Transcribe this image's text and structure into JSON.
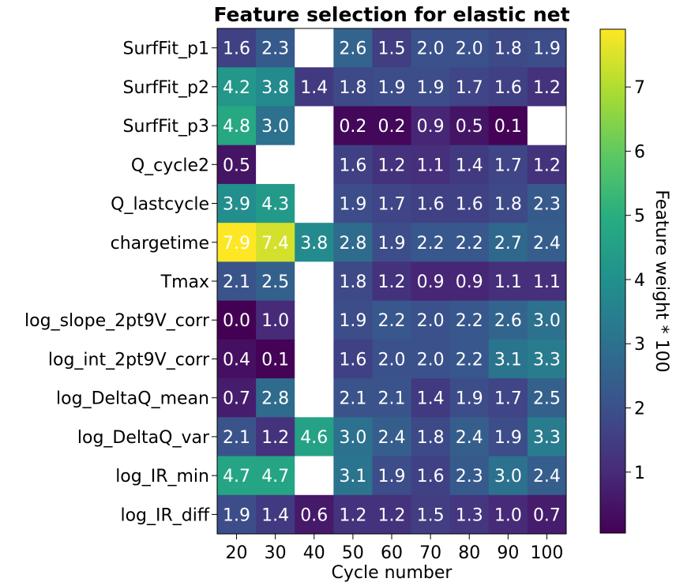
{
  "chart_data": {
    "type": "heatmap",
    "title": "Feature selection for elastic net",
    "xlabel": "Cycle number",
    "colorbar_label": "Feature weight * 100",
    "colormap": "viridis",
    "color_range": [
      0.05,
      7.9
    ],
    "colorbar_ticks": [
      1,
      2,
      3,
      4,
      5,
      6,
      7
    ],
    "x_categories": [
      "20",
      "30",
      "40",
      "50",
      "60",
      "70",
      "80",
      "90",
      "100"
    ],
    "y_categories": [
      "SurfFit_p1",
      "SurfFit_p2",
      "SurfFit_p3",
      "Q_cycle2",
      "Q_lastcycle",
      "chargetime",
      "Tmax",
      "log_slope_2pt9V_corr",
      "log_int_2pt9V_corr",
      "log_DeltaQ_mean",
      "log_DeltaQ_var",
      "log_IR_min",
      "log_IR_diff"
    ],
    "values": [
      [
        1.6,
        2.3,
        null,
        2.6,
        1.5,
        2.0,
        2.0,
        1.8,
        1.9
      ],
      [
        4.2,
        3.8,
        1.4,
        1.8,
        1.9,
        1.9,
        1.7,
        1.6,
        1.2
      ],
      [
        4.8,
        3.0,
        null,
        0.2,
        0.2,
        0.9,
        0.5,
        0.1,
        null
      ],
      [
        0.5,
        null,
        null,
        1.6,
        1.2,
        1.1,
        1.4,
        1.7,
        1.2
      ],
      [
        3.9,
        4.3,
        null,
        1.9,
        1.7,
        1.6,
        1.6,
        1.8,
        2.3
      ],
      [
        7.9,
        7.4,
        3.8,
        2.8,
        1.9,
        2.2,
        2.2,
        2.7,
        2.4
      ],
      [
        2.1,
        2.5,
        null,
        1.8,
        1.2,
        0.9,
        0.9,
        1.1,
        1.1
      ],
      [
        0.0,
        1.0,
        null,
        1.9,
        2.2,
        2.0,
        2.2,
        2.6,
        3.0
      ],
      [
        0.4,
        0.1,
        null,
        1.6,
        2.0,
        2.0,
        2.2,
        3.1,
        3.3
      ],
      [
        0.7,
        2.8,
        null,
        2.1,
        2.1,
        1.4,
        1.9,
        1.7,
        2.5
      ],
      [
        2.1,
        1.2,
        4.6,
        3.0,
        2.4,
        1.8,
        2.4,
        1.9,
        3.3
      ],
      [
        4.7,
        4.7,
        null,
        3.1,
        1.9,
        1.6,
        2.3,
        3.0,
        2.4
      ],
      [
        1.9,
        1.4,
        0.6,
        1.2,
        1.2,
        1.5,
        1.3,
        1.0,
        0.7
      ]
    ],
    "cell_labels": [
      [
        "1.6",
        "2.3",
        "",
        "2.6",
        "1.5",
        "2.0",
        "2.0",
        "1.8",
        "1.9"
      ],
      [
        "4.2",
        "3.8",
        "1.4",
        "1.8",
        "1.9",
        "1.9",
        "1.7",
        "1.6",
        "1.2"
      ],
      [
        "4.8",
        "3.0",
        "",
        "0.2",
        "0.2",
        "0.9",
        "0.5",
        "0.1",
        ""
      ],
      [
        "0.5",
        "",
        "",
        "1.6",
        "1.2",
        "1.1",
        "1.4",
        "1.7",
        "1.2"
      ],
      [
        "3.9",
        "4.3",
        "",
        "1.9",
        "1.7",
        "1.6",
        "1.6",
        "1.8",
        "2.3"
      ],
      [
        "7.9",
        "7.4",
        "3.8",
        "2.8",
        "1.9",
        "2.2",
        "2.2",
        "2.7",
        "2.4"
      ],
      [
        "2.1",
        "2.5",
        "",
        "1.8",
        "1.2",
        "0.9",
        "0.9",
        "1.1",
        "1.1"
      ],
      [
        "0.0",
        "1.0",
        "",
        "1.9",
        "2.2",
        "2.0",
        "2.2",
        "2.6",
        "3.0"
      ],
      [
        "0.4",
        "0.1",
        "",
        "1.6",
        "2.0",
        "2.0",
        "2.2",
        "3.1",
        "3.3"
      ],
      [
        "0.7",
        "2.8",
        "",
        "2.1",
        "2.1",
        "1.4",
        "1.9",
        "1.7",
        "2.5"
      ],
      [
        "2.1",
        "1.2",
        "4.6",
        "3.0",
        "2.4",
        "1.8",
        "2.4",
        "1.9",
        "3.3"
      ],
      [
        "4.7",
        "4.7",
        "",
        "3.1",
        "1.9",
        "1.6",
        "2.3",
        "3.0",
        "2.4"
      ],
      [
        "1.9",
        "1.4",
        "0.6",
        "1.2",
        "1.2",
        "1.5",
        "1.3",
        "1.0",
        "0.7"
      ]
    ],
    "missing_color": "#ffffff",
    "cell_text_color": "#ffffff"
  }
}
